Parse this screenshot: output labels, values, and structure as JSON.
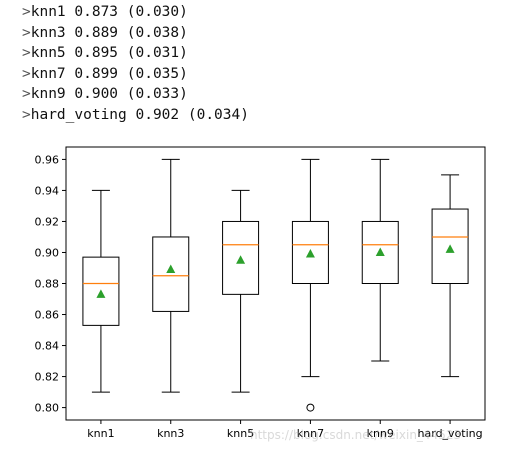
{
  "console": {
    "prompt": ">",
    "lines": [
      "knn1 0.873 (0.030)",
      "knn3 0.889 (0.038)",
      "knn5 0.895 (0.031)",
      "knn7 0.899 (0.035)",
      "knn9 0.900 (0.033)",
      "hard_voting 0.902 (0.034)"
    ]
  },
  "watermark": "https://blog.csdn.net/weixin_44523",
  "colors": {
    "box": "#000000",
    "median": "#ff7f0e",
    "mean": "#2ca02c",
    "flier": "#000000"
  },
  "chart_data": {
    "type": "boxplot",
    "title": "",
    "xlabel": "",
    "ylabel": "",
    "ylim": [
      0.792,
      0.968
    ],
    "yticks": [
      0.8,
      0.82,
      0.84,
      0.86,
      0.88,
      0.9,
      0.92,
      0.94,
      0.96
    ],
    "ytick_labels": [
      "0.80",
      "0.82",
      "0.84",
      "0.86",
      "0.88",
      "0.90",
      "0.92",
      "0.94",
      "0.96"
    ],
    "categories": [
      "knn1",
      "knn3",
      "knn5",
      "knn7",
      "knn9",
      "hard_voting"
    ],
    "boxes": [
      {
        "whisker_low": 0.81,
        "q1": 0.853,
        "median": 0.88,
        "q3": 0.897,
        "whisker_high": 0.94,
        "mean": 0.873,
        "fliers": []
      },
      {
        "whisker_low": 0.81,
        "q1": 0.862,
        "median": 0.885,
        "q3": 0.91,
        "whisker_high": 0.96,
        "mean": 0.889,
        "fliers": []
      },
      {
        "whisker_low": 0.81,
        "q1": 0.873,
        "median": 0.905,
        "q3": 0.92,
        "whisker_high": 0.94,
        "mean": 0.895,
        "fliers": []
      },
      {
        "whisker_low": 0.82,
        "q1": 0.88,
        "median": 0.905,
        "q3": 0.92,
        "whisker_high": 0.96,
        "mean": 0.899,
        "fliers": [
          0.8
        ]
      },
      {
        "whisker_low": 0.83,
        "q1": 0.88,
        "median": 0.905,
        "q3": 0.92,
        "whisker_high": 0.96,
        "mean": 0.9,
        "fliers": []
      },
      {
        "whisker_low": 0.82,
        "q1": 0.88,
        "median": 0.91,
        "q3": 0.928,
        "whisker_high": 0.95,
        "mean": 0.902,
        "fliers": []
      }
    ],
    "grid": false,
    "legend": "none"
  }
}
